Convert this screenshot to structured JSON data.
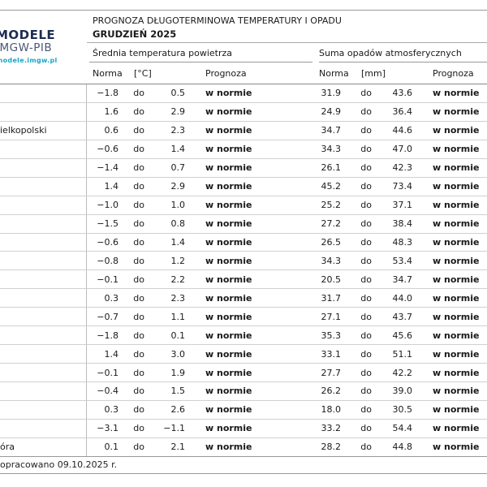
{
  "logo": {
    "name": "MODELE",
    "org": "IMGW-PIB",
    "url_label": "modele.imgw.pl"
  },
  "header": {
    "title": "PROGNOZA DŁUGOTERMINOWA TEMPERATURY I OPADU",
    "subtitle": "GRUDZIEŃ 2025"
  },
  "table": {
    "group_headers": {
      "temperature": "Średnia temperatura powietrza",
      "precipitation": "Suma opadów atmosferycznych"
    },
    "columns": {
      "norma": "Norma",
      "temp_unit": "[°C]",
      "precip_unit": "[mm]",
      "prognoza": "Prognoza",
      "range_separator": "do"
    },
    "rows": [
      {
        "city": "",
        "t_from": "−1.8",
        "t_to": "0.5",
        "t_prog": "w normie",
        "p_from": "31.9",
        "p_to": "43.6",
        "p_prog": "w normie"
      },
      {
        "city": "",
        "t_from": "1.6",
        "t_to": "2.9",
        "t_prog": "w normie",
        "p_from": "24.9",
        "p_to": "36.4",
        "p_prog": "w normie"
      },
      {
        "city": "ielkopolski",
        "t_from": "0.6",
        "t_to": "2.3",
        "t_prog": "w normie",
        "p_from": "34.7",
        "p_to": "44.6",
        "p_prog": "w normie"
      },
      {
        "city": "",
        "t_from": "−0.6",
        "t_to": "1.4",
        "t_prog": "w normie",
        "p_from": "34.3",
        "p_to": "47.0",
        "p_prog": "w normie"
      },
      {
        "city": "",
        "t_from": "−1.4",
        "t_to": "0.7",
        "t_prog": "w normie",
        "p_from": "26.1",
        "p_to": "42.3",
        "p_prog": "w normie"
      },
      {
        "city": "",
        "t_from": "1.4",
        "t_to": "2.9",
        "t_prog": "w normie",
        "p_from": "45.2",
        "p_to": "73.4",
        "p_prog": "w normie"
      },
      {
        "city": "",
        "t_from": "−1.0",
        "t_to": "1.0",
        "t_prog": "w normie",
        "p_from": "25.2",
        "p_to": "37.1",
        "p_prog": "w normie"
      },
      {
        "city": "",
        "t_from": "−1.5",
        "t_to": "0.8",
        "t_prog": "w normie",
        "p_from": "27.2",
        "p_to": "38.4",
        "p_prog": "w normie"
      },
      {
        "city": "",
        "t_from": "−0.6",
        "t_to": "1.4",
        "t_prog": "w normie",
        "p_from": "26.5",
        "p_to": "48.3",
        "p_prog": "w normie"
      },
      {
        "city": "",
        "t_from": "−0.8",
        "t_to": "1.2",
        "t_prog": "w normie",
        "p_from": "34.3",
        "p_to": "53.4",
        "p_prog": "w normie"
      },
      {
        "city": "",
        "t_from": "−0.1",
        "t_to": "2.2",
        "t_prog": "w normie",
        "p_from": "20.5",
        "p_to": "34.7",
        "p_prog": "w normie"
      },
      {
        "city": "",
        "t_from": "0.3",
        "t_to": "2.3",
        "t_prog": "w normie",
        "p_from": "31.7",
        "p_to": "44.0",
        "p_prog": "w normie"
      },
      {
        "city": "",
        "t_from": "−0.7",
        "t_to": "1.1",
        "t_prog": "w normie",
        "p_from": "27.1",
        "p_to": "43.7",
        "p_prog": "w normie"
      },
      {
        "city": "",
        "t_from": "−1.8",
        "t_to": "0.1",
        "t_prog": "w normie",
        "p_from": "35.3",
        "p_to": "45.6",
        "p_prog": "w normie"
      },
      {
        "city": "",
        "t_from": "1.4",
        "t_to": "3.0",
        "t_prog": "w normie",
        "p_from": "33.1",
        "p_to": "51.1",
        "p_prog": "w normie"
      },
      {
        "city": "",
        "t_from": "−0.1",
        "t_to": "1.9",
        "t_prog": "w normie",
        "p_from": "27.7",
        "p_to": "42.2",
        "p_prog": "w normie"
      },
      {
        "city": "",
        "t_from": "−0.4",
        "t_to": "1.5",
        "t_prog": "w normie",
        "p_from": "26.2",
        "p_to": "39.0",
        "p_prog": "w normie"
      },
      {
        "city": "",
        "t_from": "0.3",
        "t_to": "2.6",
        "t_prog": "w normie",
        "p_from": "18.0",
        "p_to": "30.5",
        "p_prog": "w normie"
      },
      {
        "city": "",
        "t_from": "−3.1",
        "t_to": "−1.1",
        "t_prog": "w normie",
        "p_from": "33.2",
        "p_to": "54.4",
        "p_prog": "w normie"
      },
      {
        "city": "óra",
        "t_from": "0.1",
        "t_to": "2.1",
        "t_prog": "w normie",
        "p_from": "28.2",
        "p_to": "44.8",
        "p_prog": "w normie"
      }
    ]
  },
  "footer": {
    "note": "opracowano 09.10.2025 r."
  },
  "colors": {
    "logo_primary": "#1d2d52",
    "logo_secondary": "#4a5775",
    "logo_url": "#18a7c9",
    "rule_dark": "#888888",
    "rule_light": "#d0d0d0",
    "text": "#1a1a1a"
  }
}
